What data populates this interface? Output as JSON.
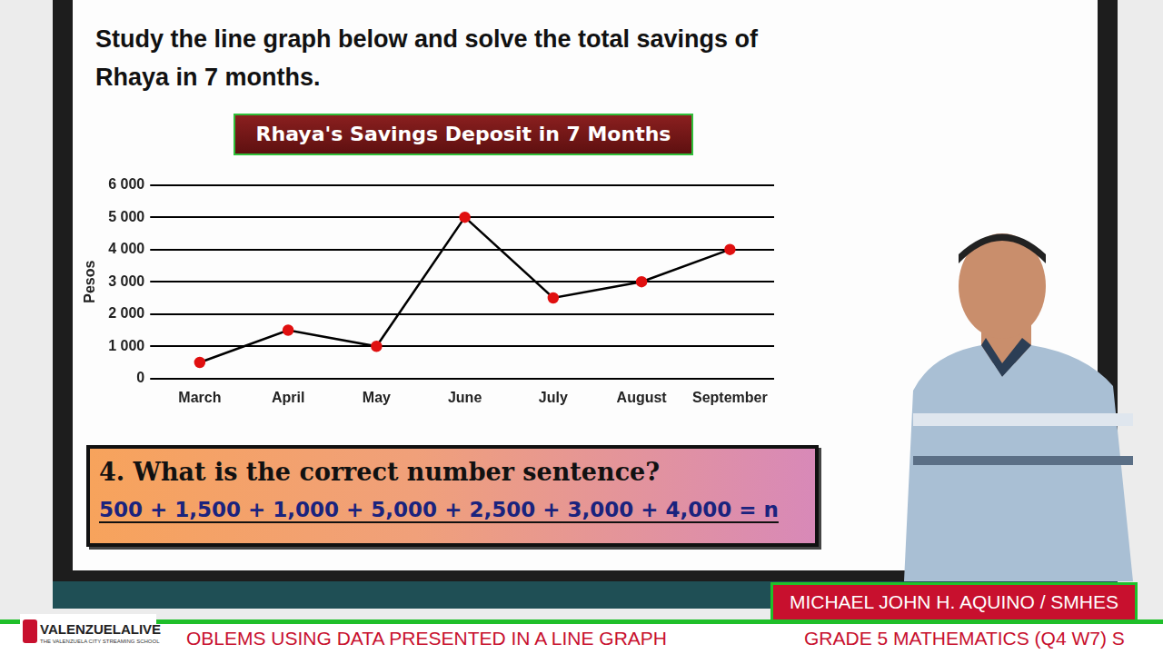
{
  "heading": "Study the line graph below and solve the total savings of Rhaya in 7 months.",
  "chart_data": {
    "type": "line",
    "title": "Rhaya's Savings Deposit in 7 Months",
    "y_label": "Pesos",
    "categories": [
      "March",
      "April",
      "May",
      "June",
      "July",
      "August",
      "September"
    ],
    "values": [
      500,
      1500,
      1000,
      5000,
      2500,
      3000,
      4000
    ],
    "color": "#000000",
    "colors": [
      "#e01010",
      "#e01010",
      "#e01010",
      "#e01010",
      "#e01010",
      "#e01010",
      "#e01010"
    ],
    "marker": "circle",
    "line_style": "solid",
    "ylim": [
      0,
      6000
    ],
    "yticks": [
      0,
      {
        "value": 1000,
        "label": "1 000"
      },
      {
        "value": 2000,
        "label": "2 000"
      },
      {
        "value": 3000,
        "label": "3 000"
      },
      {
        "value": 4000,
        "label": "4 000"
      },
      {
        "value": 5000,
        "label": "5 000"
      },
      {
        "value": 6000,
        "label": "6 000"
      }
    ],
    "grid": true
  },
  "question": "4. What is the correct number sentence?",
  "number_sentence": "500 + 1,500 + 1,000 + 5,000 + 2,500 + 3,000 + 4,000 = n",
  "presenter": "MICHAEL JOHN H. AQUINO / SMHES",
  "ticker": [
    "OBLEMS USING DATA PRESENTED IN A LINE GRAPH",
    "GRADE 5 MATHEMATICS (Q4 W7) S"
  ],
  "logo": {
    "name": "VALENZUELALIVE",
    "tagline": "THE VALENZUELA CITY STREAMING SCHOOL"
  }
}
